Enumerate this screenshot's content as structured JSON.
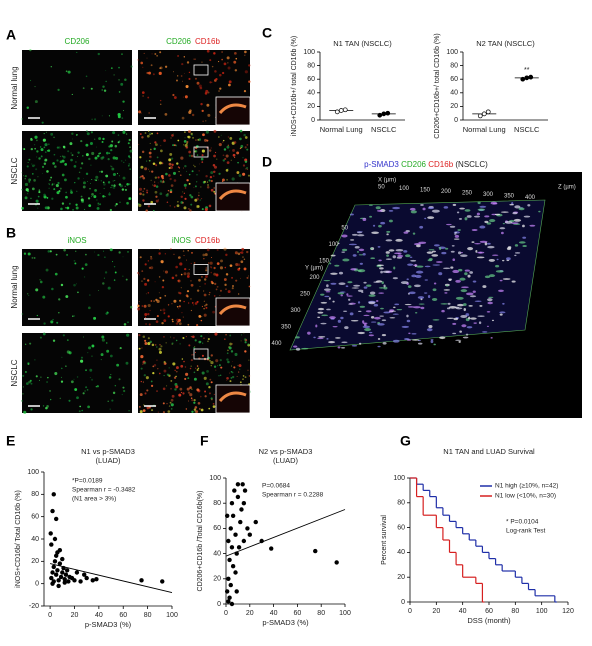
{
  "panel_labels": {
    "a": "A",
    "b": "B",
    "c": "C",
    "d": "D",
    "e": "E",
    "f": "F",
    "g": "G"
  },
  "panel_a": {
    "col1": "CD206",
    "col2_green": "CD206",
    "col2_red": "CD16b",
    "row1": "Normal lung",
    "row2": "NSCLC"
  },
  "panel_b": {
    "col1": "iNOS",
    "col2_green": "iNOS",
    "col2_red": "CD16b",
    "row1": "Normal lung",
    "row2": "NSCLC"
  },
  "panel_d": {
    "title_blue": "p-SMAD3",
    "title_green": "CD206",
    "title_red": "CD16b",
    "title_rest": "(NSCLC)",
    "x_label": "X (µm)",
    "y_label": "Y (µm)",
    "z_label": "Z (µm)",
    "x_ticks": [
      "50",
      "100",
      "150",
      "200",
      "250",
      "300",
      "350",
      "400"
    ],
    "y_ticks": [
      "50",
      "100",
      "150",
      "200",
      "250",
      "300",
      "350",
      "400"
    ]
  },
  "chart_data": [
    {
      "type": "dot",
      "title": "N1 TAN (NSCLC)",
      "y_label": "iNOS+CD16b+/ total CD16b (%)",
      "categories": [
        "Normal Lung",
        "NSCLC"
      ],
      "points": [
        [
          12,
          14,
          15
        ],
        [
          7,
          9,
          10
        ]
      ],
      "values": [
        14,
        9
      ],
      "color": "#000000",
      "ylim": [
        0,
        100
      ],
      "yticks": [
        0,
        20,
        40,
        60,
        80,
        100
      ]
    },
    {
      "type": "dot",
      "title": "N2 TAN (NSCLC)",
      "y_label": "CD206+CD16b+/ total CD16b (%)",
      "categories": [
        "Normal Lung",
        "NSCLC"
      ],
      "points": [
        [
          6,
          9,
          12
        ],
        [
          60,
          62,
          63
        ]
      ],
      "values": [
        9,
        62
      ],
      "color": "#000000",
      "annotations": [
        "**"
      ],
      "ylim": [
        0,
        100
      ],
      "yticks": [
        0,
        20,
        40,
        60,
        80,
        100
      ]
    },
    {
      "type": "scatter",
      "title": "N1 vs p-SMAD3",
      "subtitle": "(LUAD)",
      "annotations": [
        "*P=0.0189",
        "Spearman r = -0.3482",
        "(N1 area > 3%)"
      ],
      "x_label": "p-SMAD3 (%)",
      "y_label": "iNOS+CD16b/ Total CD16b (%)",
      "color": "#000000",
      "x": [
        1,
        2,
        3,
        3,
        4,
        5,
        5,
        6,
        7,
        8,
        8,
        9,
        10,
        11,
        12,
        13,
        14,
        15,
        16,
        18,
        20,
        22,
        25,
        28,
        30,
        35,
        38,
        3,
        2,
        5,
        1,
        4,
        6,
        10,
        75,
        92,
        2,
        7,
        12,
        0.5
      ],
      "values": [
        5,
        10,
        2,
        15,
        20,
        8,
        25,
        12,
        3,
        18,
        30,
        6,
        10,
        14,
        4,
        8,
        12,
        2,
        6,
        5,
        3,
        10,
        2,
        8,
        5,
        3,
        4,
        80,
        65,
        58,
        35,
        40,
        28,
        22,
        3,
        2,
        0,
        -2,
        1,
        45
      ],
      "fit": {
        "x": [
          0,
          100
        ],
        "y": [
          18,
          -8
        ]
      },
      "xlim": [
        -5,
        100
      ],
      "xticks": [
        0,
        20,
        40,
        60,
        80,
        100
      ],
      "ylim": [
        -20,
        100
      ],
      "yticks": [
        -20,
        0,
        20,
        40,
        60,
        80,
        100
      ]
    },
    {
      "type": "scatter",
      "title": "N2 vs p-SMAD3",
      "subtitle": "(LUAD)",
      "annotations": [
        "P=0.0684",
        "Spearman r = 0.2288"
      ],
      "x_label": "p-SMAD3 (%)",
      "y_label": "CD206+CD16b /Total CD16b(%)",
      "color": "#000000",
      "x": [
        1,
        2,
        2,
        3,
        4,
        5,
        5,
        6,
        7,
        8,
        9,
        10,
        10,
        12,
        13,
        14,
        15,
        16,
        18,
        20,
        3,
        4,
        6,
        8,
        11,
        2,
        1,
        75,
        93,
        38,
        25,
        30,
        5,
        9,
        15
      ],
      "values": [
        10,
        20,
        50,
        35,
        60,
        45,
        80,
        70,
        90,
        55,
        40,
        85,
        95,
        65,
        75,
        95,
        50,
        90,
        60,
        55,
        5,
        15,
        30,
        25,
        45,
        2,
        70,
        42,
        33,
        44,
        65,
        50,
        0,
        10,
        80
      ],
      "fit": {
        "x": [
          0,
          100
        ],
        "y": [
          38,
          75
        ]
      },
      "xlim": [
        0,
        100
      ],
      "xticks": [
        0,
        20,
        40,
        60,
        80,
        100
      ],
      "ylim": [
        0,
        100
      ],
      "yticks": [
        0,
        20,
        40,
        60,
        80,
        100
      ]
    },
    {
      "type": "survival",
      "title": "N1 TAN and LUAD Survival",
      "x_label": "DSS (month)",
      "y_label": "Percent survival",
      "annotations": [
        "* P=0.0104",
        "Log-rank Test"
      ],
      "legend": "upper right",
      "series": [
        {
          "name": "N1 high (≥10%, n=42)",
          "color": "#1f2fa8",
          "x": [
            0,
            5,
            10,
            15,
            20,
            25,
            30,
            35,
            40,
            45,
            50,
            55,
            60,
            65,
            70,
            80,
            85,
            90,
            95,
            110
          ],
          "values": [
            100,
            95,
            90,
            85,
            76,
            70,
            65,
            60,
            55,
            50,
            45,
            40,
            35,
            30,
            25,
            20,
            15,
            10,
            5,
            0
          ]
        },
        {
          "name": "N1 low (<10%, n=30)",
          "color": "#d62020",
          "x": [
            0,
            5,
            10,
            20,
            25,
            30,
            35,
            40,
            50,
            55
          ],
          "values": [
            100,
            85,
            70,
            60,
            50,
            40,
            30,
            20,
            15,
            0
          ]
        }
      ],
      "xlim": [
        0,
        120
      ],
      "xticks": [
        0,
        20,
        40,
        60,
        80,
        100,
        120
      ],
      "ylim": [
        0,
        100
      ],
      "yticks": [
        0,
        20,
        40,
        60,
        80,
        100
      ]
    }
  ]
}
